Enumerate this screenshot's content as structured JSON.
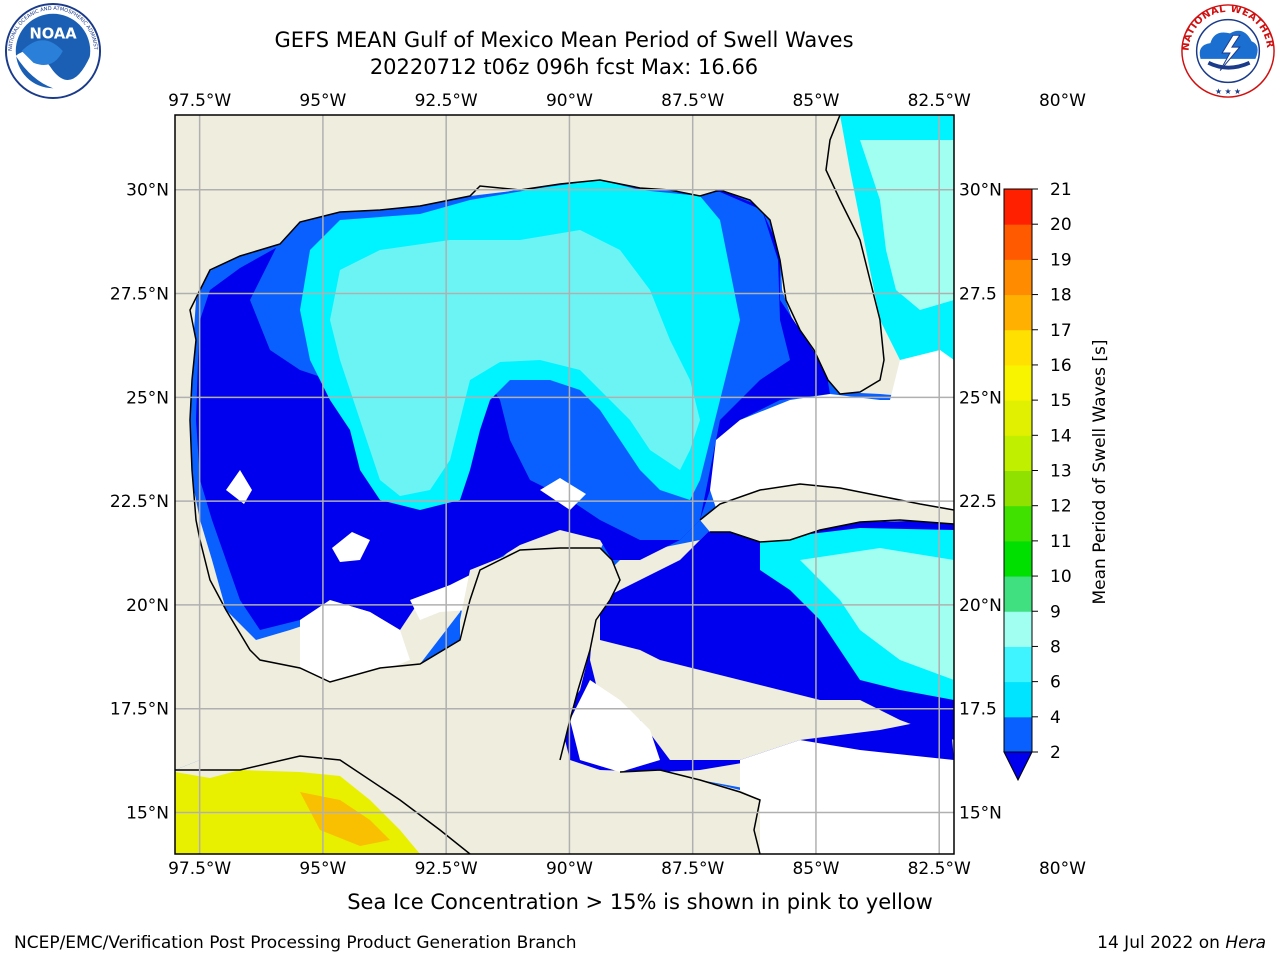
{
  "title": {
    "line1": "GEFS MEAN Gulf of Mexico Mean Period of Swell Waves",
    "line2": "20220712 t06z 096h fcst   Max: 16.66"
  },
  "footer": {
    "note": "Sea Ice Concentration > 15% is shown in pink to yellow",
    "credit": "NCEP/EMC/Verification Post Processing Product Generation Branch",
    "date": "14 Jul 2022 on ",
    "host": "Hera"
  },
  "logos": {
    "noaa": {
      "text": "NOAA",
      "ring_text": "NATIONAL OCEANIC AND ATMOSPHERIC ADMINISTRATION · U.S. DEPARTMENT OF COMMERCE"
    },
    "nws": {
      "ring_text": "NATIONAL WEATHER SERVICE"
    }
  },
  "chart_data": {
    "type": "heatmap",
    "map_extent": {
      "lon": [
        -98.0,
        -82.2
      ],
      "lat": [
        14.0,
        31.8
      ]
    },
    "lon_ticks": [
      -97.5,
      -95,
      -92.5,
      -90,
      -87.5,
      -85,
      -82.5,
      -80
    ],
    "lon_tick_labels": [
      "97.5°W",
      "95°W",
      "92.5°W",
      "90°W",
      "87.5°W",
      "85°W",
      "82.5°W",
      "80°W"
    ],
    "lat_ticks": [
      15,
      17.5,
      20,
      22.5,
      25,
      27.5,
      30
    ],
    "lat_tick_labels_left": [
      "15°N",
      "17.5°N",
      "20°N",
      "22.5°N",
      "25°N",
      "27.5°N",
      "30°N"
    ],
    "lat_tick_labels_right": [
      "15°N",
      "17.5",
      "20°N",
      "22.5",
      "25°N",
      "27.5",
      "30°N"
    ],
    "grid": true,
    "colorbar": {
      "label": "Mean Period of Swell Waves [s]",
      "levels": [
        2,
        4,
        6,
        8,
        9,
        10,
        11,
        12,
        13,
        14,
        15,
        16,
        17,
        18,
        19,
        20,
        21
      ],
      "colors": [
        "#0a60ff",
        "#00e4ff",
        "#40f4ff",
        "#a0fff0",
        "#40e080",
        "#00e000",
        "#40e000",
        "#90e000",
        "#c0f000",
        "#e0f000",
        "#f8f400",
        "#ffe000",
        "#ffb000",
        "#ff8c00",
        "#ff5a00",
        "#ff2000"
      ],
      "extend_min_color": "#0000ee"
    },
    "colors": {
      "land": "#efedde",
      "deep": "#0000ee",
      "low": "#0a60ff",
      "mid": "#00f4ff",
      "light": "#6cf4f4",
      "pale": "#a0fff0",
      "ice_yellow": "#e8f000",
      "ice_orange": "#f8c000",
      "grid": "#b0b0b0"
    }
  }
}
